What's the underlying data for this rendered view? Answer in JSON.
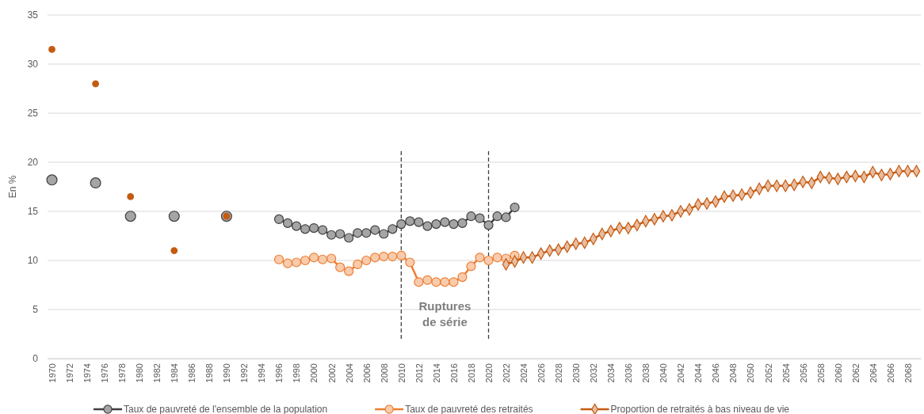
{
  "chart_data": {
    "type": "line",
    "ylabel": "En %",
    "xlim": [
      1969.5,
      2069.5
    ],
    "xticks": [
      1970,
      1972,
      1974,
      1976,
      1978,
      1980,
      1982,
      1984,
      1986,
      1988,
      1990,
      1992,
      1994,
      1996,
      1998,
      2000,
      2002,
      2004,
      2006,
      2008,
      2010,
      2012,
      2014,
      2016,
      2018,
      2020,
      2022,
      2024,
      2026,
      2028,
      2030,
      2032,
      2034,
      2036,
      2038,
      2040,
      2042,
      2044,
      2046,
      2048,
      2050,
      2052,
      2054,
      2056,
      2058,
      2060,
      2062,
      2064,
      2066,
      2068
    ],
    "ylim": [
      0,
      35
    ],
    "yticks": [
      0,
      5,
      10,
      15,
      20,
      25,
      30,
      35
    ],
    "grid": "y",
    "legend": "bottom",
    "line_style": "solid",
    "series": [
      {
        "type": "scatter",
        "marker": "circle",
        "color": "#a5a5a5",
        "x": [
          1970,
          1975,
          1979,
          1984,
          1990
        ],
        "values": [
          18.2,
          17.9,
          14.5,
          14.5,
          14.5
        ]
      },
      {
        "type": "scatter",
        "marker": "circle",
        "color": "#c55a11",
        "x": [
          1970,
          1975,
          1979,
          1984,
          1990
        ],
        "values": [
          31.5,
          28.0,
          16.5,
          11.0,
          14.5
        ]
      },
      {
        "name": "Taux de pauvreté de l'ensemble de la population",
        "marker": "circle",
        "color": "#404040",
        "x": [
          1996,
          1997,
          1998,
          1999,
          2000,
          2001,
          2002,
          2003,
          2004,
          2005,
          2006,
          2007,
          2008,
          2009,
          2010,
          2011,
          2012,
          2013,
          2014,
          2015,
          2016,
          2017,
          2018,
          2019,
          2020,
          2021,
          2022,
          2023
        ],
        "values": [
          14.2,
          13.8,
          13.5,
          13.2,
          13.3,
          13.1,
          12.6,
          12.7,
          12.3,
          12.8,
          12.8,
          13.1,
          12.7,
          13.2,
          13.7,
          14.0,
          13.9,
          13.5,
          13.7,
          13.9,
          13.7,
          13.8,
          14.5,
          14.3,
          13.6,
          14.5,
          14.4,
          15.4
        ]
      },
      {
        "name": "Taux de pauvreté des retraités",
        "marker": "circle",
        "color": "#ed7d31",
        "x": [
          1996,
          1997,
          1998,
          1999,
          2000,
          2001,
          2002,
          2003,
          2004,
          2005,
          2006,
          2007,
          2008,
          2009,
          2010,
          2011,
          2012,
          2013,
          2014,
          2015,
          2016,
          2017,
          2018,
          2019,
          2020,
          2021,
          2022,
          2023
        ],
        "values": [
          10.1,
          9.7,
          9.8,
          10.0,
          10.3,
          10.1,
          10.2,
          9.3,
          8.9,
          9.6,
          10.0,
          10.3,
          10.4,
          10.4,
          10.5,
          9.8,
          7.8,
          8.0,
          7.8,
          7.8,
          7.8,
          8.3,
          9.4,
          10.3,
          10.0,
          10.3,
          10.2,
          10.5
        ]
      },
      {
        "name": "Proportion de retraités à bas niveau de vie",
        "marker": "diamond",
        "color": "#c55a11",
        "x": [
          2022,
          2023,
          2024,
          2025,
          2026,
          2027,
          2028,
          2029,
          2030,
          2031,
          2032,
          2033,
          2034,
          2035,
          2036,
          2037,
          2038,
          2039,
          2040,
          2041,
          2042,
          2043,
          2044,
          2045,
          2046,
          2047,
          2048,
          2049,
          2050,
          2051,
          2052,
          2053,
          2054,
          2055,
          2056,
          2057,
          2058,
          2059,
          2060,
          2061,
          2062,
          2063,
          2064,
          2065,
          2066,
          2067,
          2068,
          2069
        ],
        "values": [
          9.6,
          9.9,
          10.3,
          10.3,
          10.7,
          11.0,
          11.1,
          11.4,
          11.7,
          11.8,
          12.2,
          12.7,
          13.0,
          13.3,
          13.3,
          13.6,
          14.0,
          14.2,
          14.5,
          14.6,
          15.0,
          15.2,
          15.7,
          15.8,
          16.0,
          16.5,
          16.6,
          16.7,
          16.9,
          17.3,
          17.6,
          17.6,
          17.6,
          17.7,
          18.0,
          17.9,
          18.5,
          18.4,
          18.3,
          18.5,
          18.6,
          18.5,
          19.0,
          18.7,
          18.8,
          19.1,
          19.1,
          19.1
        ]
      }
    ],
    "ref_lines": [
      {
        "axis": "x",
        "value": 2010,
        "line_style": "dashed",
        "color": "#404040"
      },
      {
        "axis": "x",
        "value": 2020,
        "line_style": "dashed",
        "color": "#404040"
      }
    ],
    "annotations": [
      "Ruptures de série"
    ]
  }
}
